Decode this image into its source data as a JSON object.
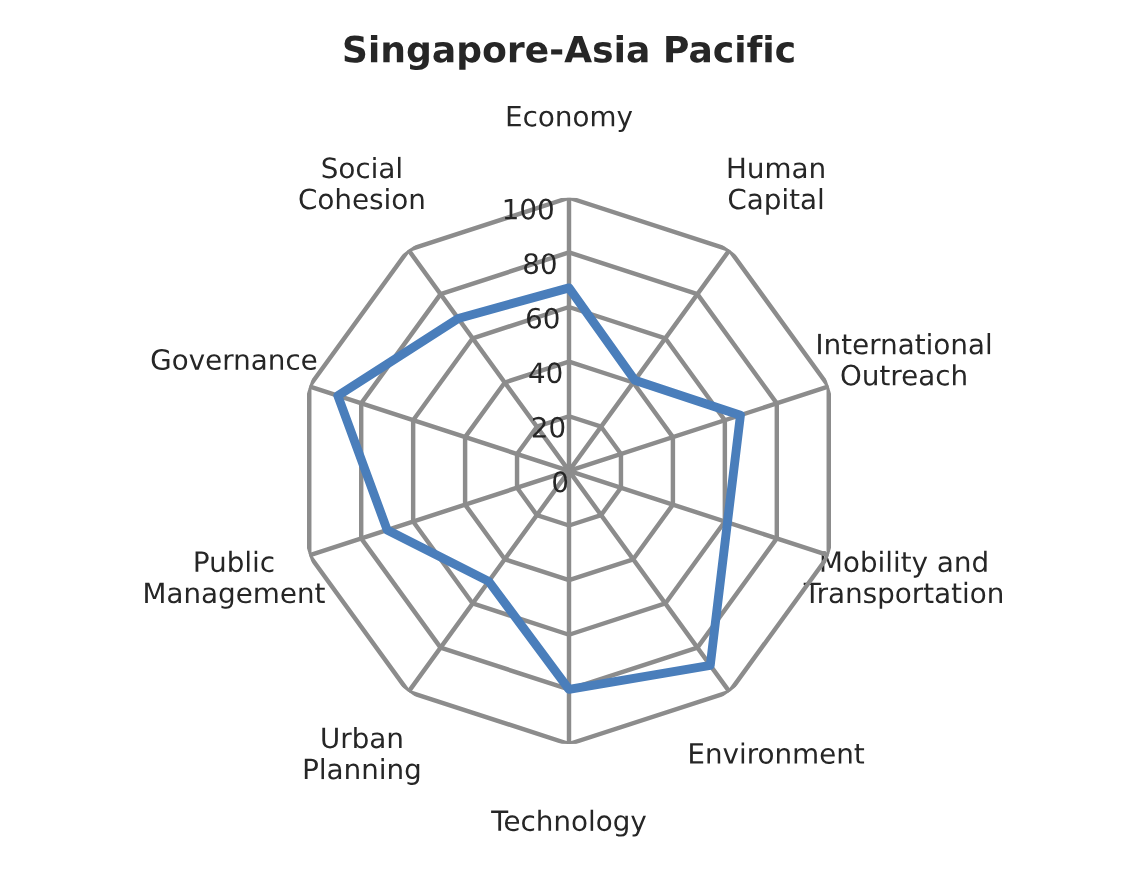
{
  "chart_data": {
    "type": "radar",
    "title": "Singapore-Asia Pacific",
    "categories": [
      "Economy",
      "Human\nCapital",
      "International\nOutreach",
      "Mobility and\nTransportation",
      "Environment",
      "Technology",
      "Urban\nPlanning",
      "Public\nManagement",
      "Governance",
      "Social\nCohesion"
    ],
    "series": [
      {
        "color": "#4a7ebb",
        "values": [
          67,
          41,
          66,
          61,
          88,
          80,
          50,
          70,
          89,
          69
        ]
      }
    ],
    "ylim": [
      0,
      100
    ],
    "yticks": [
      0,
      20,
      40,
      60,
      80,
      100
    ],
    "grid": true,
    "marker": "none",
    "line_style": "solid"
  }
}
